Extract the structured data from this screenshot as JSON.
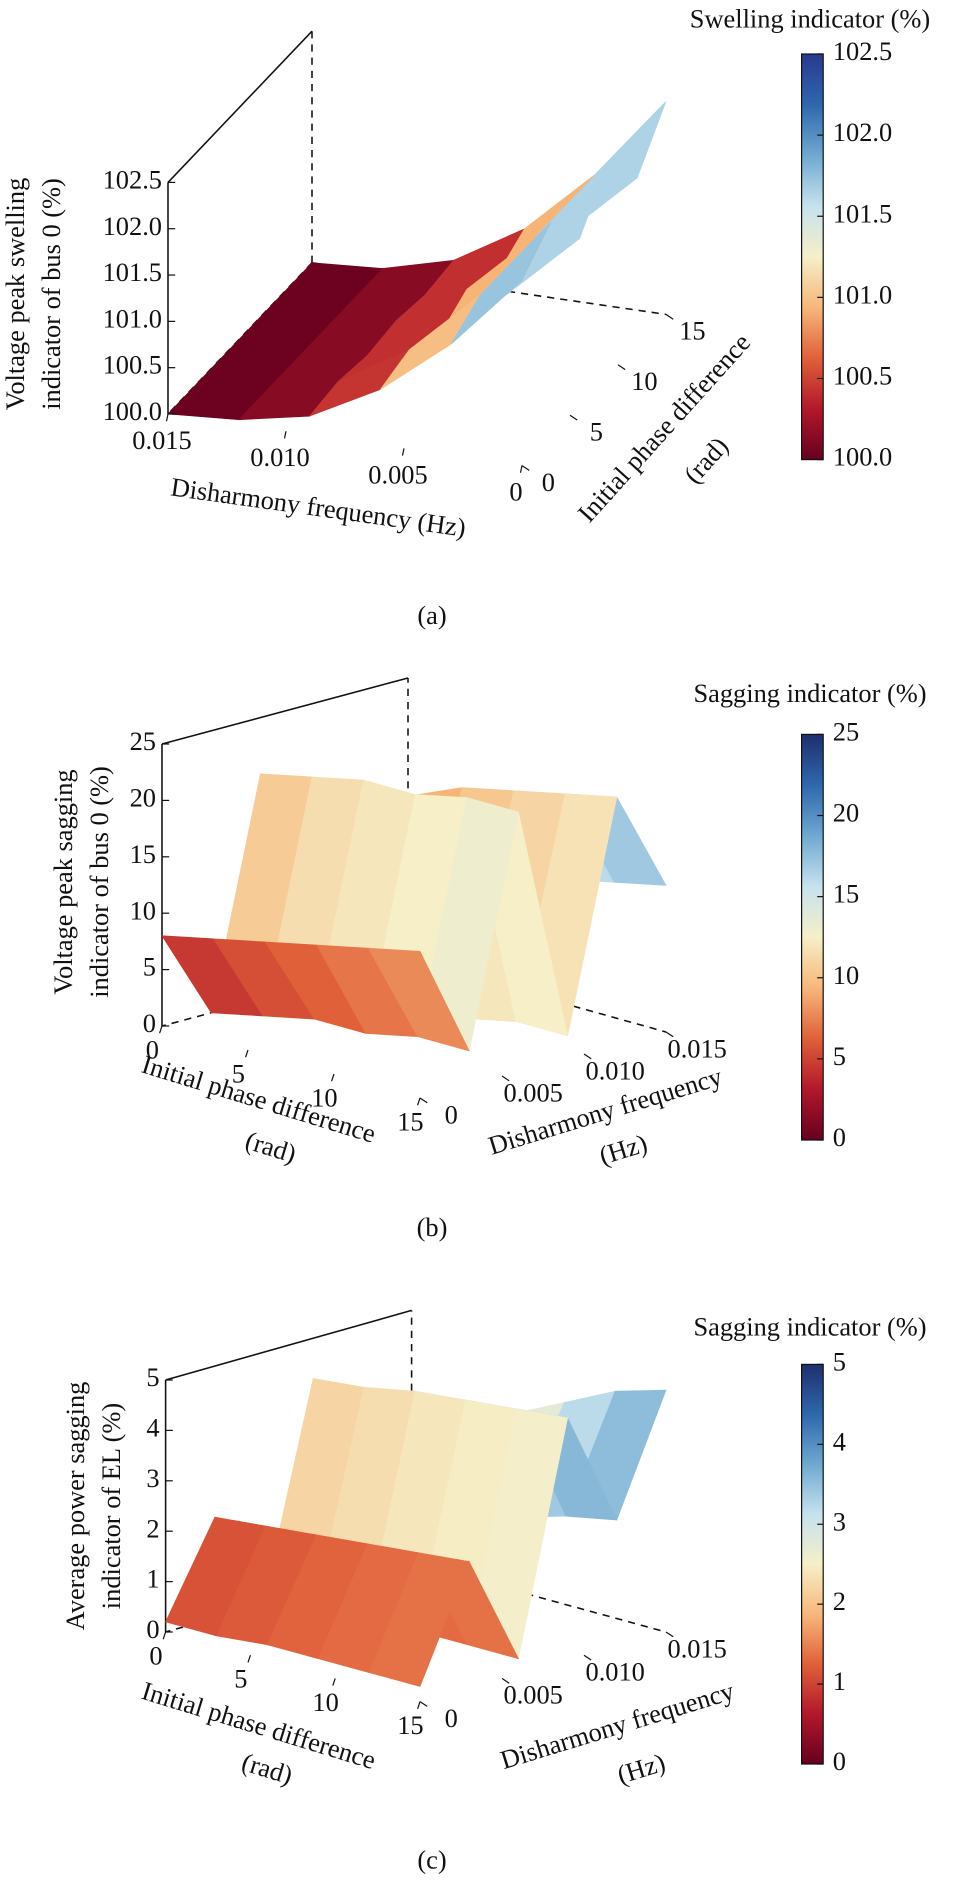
{
  "chart_data": [
    {
      "type": "surface3d",
      "caption": "(a)",
      "x": [
        0,
        0.003,
        0.006,
        0.009,
        0.012,
        0.015
      ],
      "y": [
        0,
        3,
        6,
        9,
        12,
        15
      ],
      "z": [
        [
          102.0,
          101.2,
          100.6,
          100.2,
          100.05,
          100.0
        ],
        [
          102.3,
          101.4,
          100.7,
          100.25,
          100.05,
          100.0
        ],
        [
          101.8,
          101.1,
          100.5,
          100.2,
          100.05,
          100.0
        ],
        [
          102.3,
          101.4,
          100.7,
          100.25,
          100.05,
          100.0
        ],
        [
          101.8,
          101.1,
          100.5,
          100.2,
          100.05,
          100.0
        ],
        [
          102.3,
          101.4,
          100.7,
          100.25,
          100.05,
          100.0
        ]
      ],
      "xlim": [
        0,
        0.015
      ],
      "ylim": [
        0,
        15
      ],
      "zlim": [
        100,
        102.5
      ],
      "xticks": [
        0,
        0.005,
        {
          "value": 0.01,
          "label": "0.010"
        },
        0.015
      ],
      "yticks": [
        0,
        5,
        10,
        15
      ],
      "zticks": [
        {
          "value": 100,
          "label": "100.0"
        },
        100.5,
        {
          "value": 101,
          "label": "101.0"
        },
        101.5,
        {
          "value": 102,
          "label": "102.0"
        },
        102.5
      ],
      "xlabel": [
        "Disharmony frequency (Hz)"
      ],
      "ylabel": [
        "Initial phase difference",
        "(rad)"
      ],
      "zlabel": [
        "Voltage peak swelling",
        "indicator of bus 0 (%)"
      ],
      "colormap": [
        "#67001f",
        "#b2182b",
        "#e0603a",
        "#f7b77a",
        "#f6efc8",
        "#c6e2ee",
        "#6fa8d0",
        "#2f67ad",
        "#283a8e"
      ],
      "colorbar": {
        "title": "Swelling indicator (%)",
        "lim": [
          100,
          102.5
        ],
        "ticks": [
          {
            "value": 100,
            "label": "100.0"
          },
          100.5,
          {
            "value": 101,
            "label": "101.0"
          },
          101.5,
          {
            "value": 102,
            "label": "102.0"
          },
          102.5
        ]
      }
    },
    {
      "type": "surface3d",
      "caption": "(b)",
      "x": [
        0,
        3,
        6,
        9,
        12,
        15
      ],
      "y": [
        0,
        0.003,
        0.006,
        0.009,
        0.012,
        0.015
      ],
      "z": [
        [
          8,
          9,
          10,
          11,
          12,
          13
        ],
        [
          0,
          1,
          2,
          2,
          3,
          3
        ],
        [
          20,
          21,
          22,
          22,
          23,
          23
        ],
        [
          0,
          0,
          1,
          1,
          2,
          2
        ],
        [
          15,
          17,
          19,
          20,
          21,
          22
        ],
        [
          5,
          7,
          9,
          11,
          12,
          13
        ]
      ],
      "xlim": [
        0,
        15
      ],
      "ylim": [
        0,
        0.015
      ],
      "zlim": [
        0,
        25
      ],
      "xticks": [
        0,
        5,
        10,
        15
      ],
      "yticks": [
        0,
        0.005,
        {
          "value": 0.01,
          "label": "0.010"
        },
        0.015
      ],
      "zticks": [
        0,
        5,
        10,
        15,
        20,
        25
      ],
      "xlabel": [
        "Initial phase difference",
        "(rad)"
      ],
      "ylabel": [
        "Disharmony frequency",
        "(Hz)"
      ],
      "zlabel": [
        "Voltage peak sagging",
        "indicator of bus 0 (%)"
      ],
      "colormap": [
        "#67001f",
        "#b2182b",
        "#e0603a",
        "#f7b77a",
        "#f6efc8",
        "#c6e2ee",
        "#6fa8d0",
        "#2f67ad",
        "#1e2f6e"
      ],
      "colorbar": {
        "title": "Sagging indicator (%)",
        "lim": [
          0,
          25
        ],
        "ticks": [
          0,
          5,
          10,
          15,
          20,
          25
        ]
      }
    },
    {
      "type": "surface3d",
      "caption": "(c)",
      "x": [
        0,
        3,
        6,
        9,
        12,
        15
      ],
      "y": [
        0,
        0.003,
        0.006,
        0.009,
        0.012,
        0.015
      ],
      "z": [
        [
          0.2,
          0.2,
          0.3,
          0.3,
          0.3,
          0.3
        ],
        [
          2.0,
          2.1,
          2.2,
          2.3,
          2.4,
          2.5
        ],
        [
          0.1,
          0.2,
          0.2,
          0.3,
          0.3,
          0.3
        ],
        [
          4.2,
          4.3,
          4.5,
          4.6,
          4.7,
          4.8
        ],
        [
          0.5,
          1.0,
          1.5,
          2.0,
          2.3,
          2.5
        ],
        [
          2.5,
          3.0,
          3.5,
          4.0,
          4.5,
          4.8
        ]
      ],
      "xlim": [
        0,
        15
      ],
      "ylim": [
        0,
        0.015
      ],
      "zlim": [
        0,
        5
      ],
      "xticks": [
        0,
        5,
        10,
        15
      ],
      "yticks": [
        0,
        0.005,
        {
          "value": 0.01,
          "label": "0.010"
        },
        0.015
      ],
      "zticks": [
        0,
        1,
        2,
        3,
        4,
        5
      ],
      "xlabel": [
        "Initial phase difference",
        "(rad)"
      ],
      "ylabel": [
        "Disharmony frequency",
        "(Hz)"
      ],
      "zlabel": [
        "Average power sagging",
        "indicator of EL (%)"
      ],
      "colormap": [
        "#67001f",
        "#b2182b",
        "#e0603a",
        "#f7b77a",
        "#f6efc8",
        "#c6e2ee",
        "#6fa8d0",
        "#2f67ad",
        "#1e2f6e"
      ],
      "colorbar": {
        "title": "Sagging indicator (%)",
        "lim": [
          0,
          5
        ],
        "ticks": [
          0,
          1,
          2,
          3,
          4,
          5
        ]
      }
    }
  ]
}
